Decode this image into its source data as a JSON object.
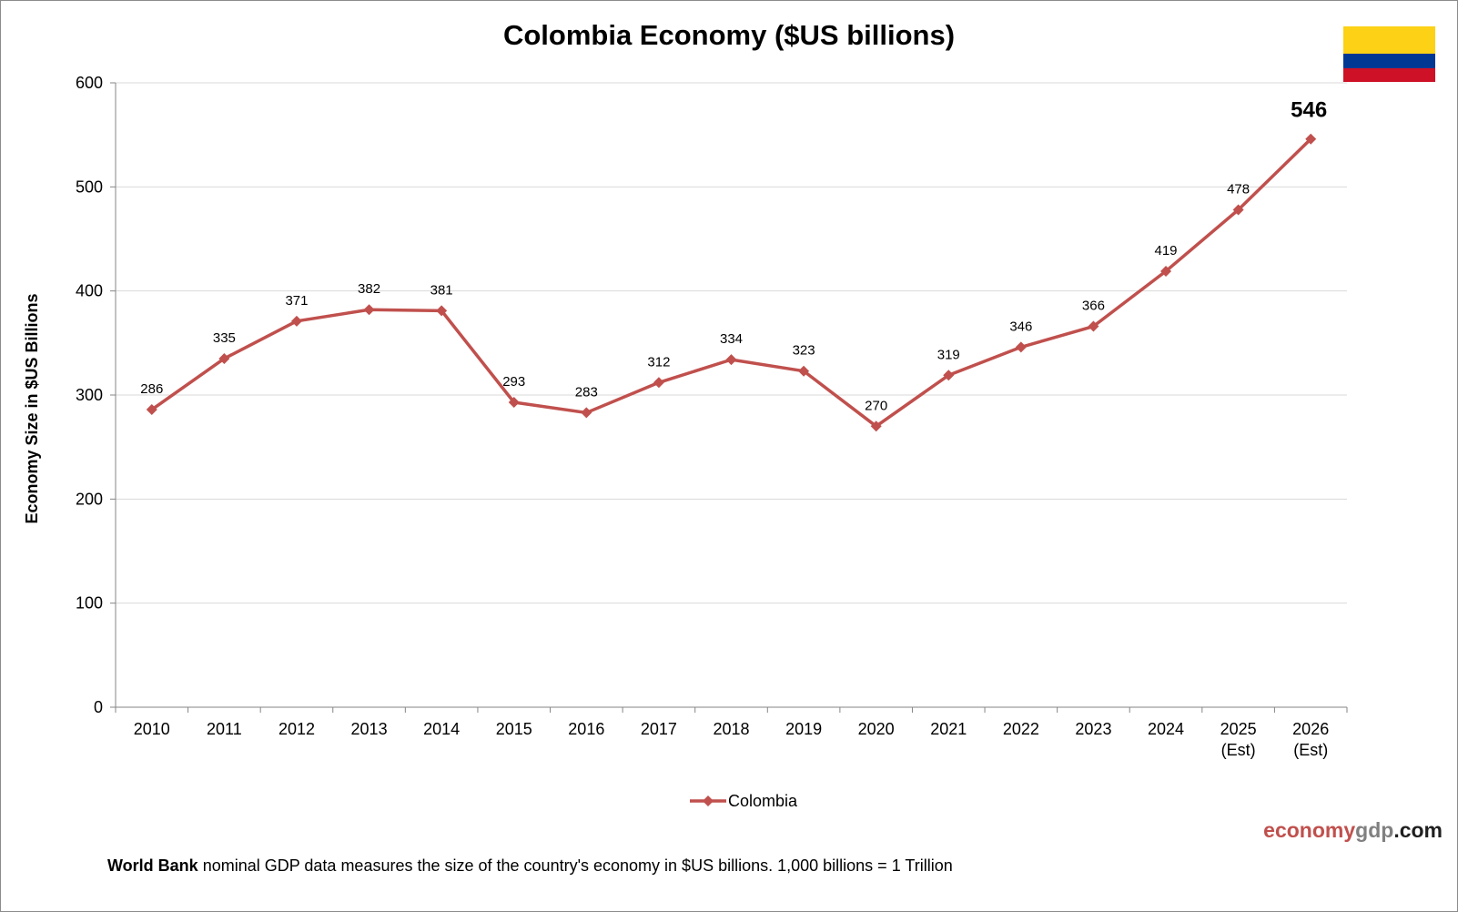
{
  "footnote": {
    "bold": "World Bank",
    "rest": " nominal GDP data  measures the size of the country's economy in $US billions. 1,000 billions = 1 Trillion"
  },
  "brand": {
    "part1": "economy",
    "part2": "gdp",
    "part3": ".com"
  },
  "flag": {
    "colors": [
      "#FCD116",
      "#003893",
      "#CE1126"
    ],
    "icon": "colombia-flag-icon"
  },
  "colors": {
    "series": "#c0504d",
    "grid": "#d9d9d9",
    "axis": "#868686"
  },
  "chart_data": {
    "type": "line",
    "title": "Colombia Economy ($US billions)",
    "xlabel": "",
    "ylabel": "Economy Size in $US Billions",
    "ylim": [
      0,
      600
    ],
    "yticks": [
      0,
      100,
      200,
      300,
      400,
      500,
      600
    ],
    "grid": true,
    "legend_placement": "bottom",
    "categories": [
      "2010",
      "2011",
      "2012",
      "2013",
      "2014",
      "2015",
      "2016",
      "2017",
      "2018",
      "2019",
      "2020",
      "2021",
      "2022",
      "2023",
      "2024",
      "2025\n(Est)",
      "2026\n(Est)"
    ],
    "series": [
      {
        "name": "Colombia",
        "values": [
          286,
          335,
          371,
          382,
          381,
          293,
          283,
          312,
          334,
          323,
          270,
          319,
          346,
          366,
          419,
          478,
          546
        ]
      }
    ]
  }
}
